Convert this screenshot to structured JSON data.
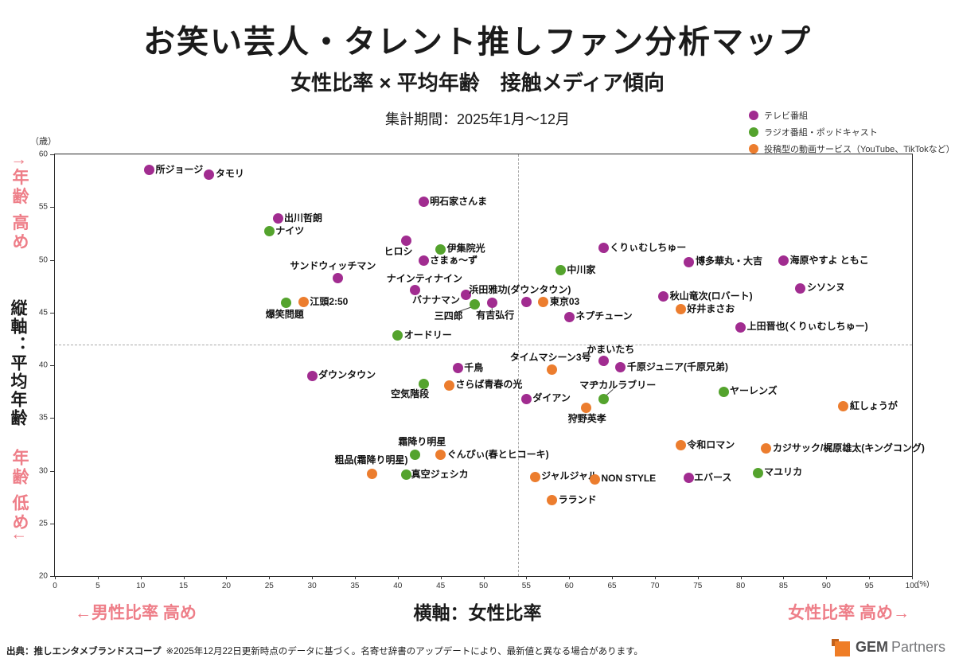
{
  "colors": {
    "annotation_pink": "#EE7E88",
    "logo_orange": "#EF7D26",
    "logo_orange_dark": "#C2611B"
  },
  "header": {
    "title": "お笑い芸人・タレント推しファン分析マップ",
    "subtitle": "女性比率 × 平均年齢　接触メディア傾向",
    "period": "集計期間：2025年1月～12月"
  },
  "legend": {
    "items": [
      {
        "key": "tv",
        "label": "テレビ番組",
        "color": "#A12C90"
      },
      {
        "key": "radio",
        "label": "ラジオ番組・ポッドキャスト",
        "color": "#54A32D"
      },
      {
        "key": "video",
        "label": "投稿型の動画サービス（YouTube、TikTokなど）",
        "color": "#EC7D2E"
      }
    ]
  },
  "annotations": {
    "y_high": "↑年齢 高め",
    "y_axis_name": "縦軸：平均年齢",
    "y_low": "年齢 低め↓",
    "x_low": "←男性比率 高め",
    "x_axis_name": "横軸：女性比率",
    "x_high": "女性比率 高め→",
    "y_unit": "（歳）",
    "x_unit": "(%)"
  },
  "footer": {
    "source_bold": "出典：推しエンタメブランドスコープ",
    "source_note": "※2025年12月22日更新時点のデータに基づく。名寄せ辞書のアップデートにより、最新値と異なる場合があります。",
    "logo_gem": "GEM",
    "logo_partners": "Partners"
  },
  "chart_data": {
    "type": "scatter",
    "title": "お笑い芸人・タレント推しファン分析マップ",
    "xlabel": "横軸：女性比率",
    "ylabel": "縦軸：平均年齢",
    "xlim": [
      0,
      100
    ],
    "ylim": [
      20,
      60
    ],
    "x_ticks": [
      0,
      5,
      10,
      15,
      20,
      25,
      30,
      35,
      40,
      45,
      50,
      55,
      60,
      65,
      70,
      75,
      80,
      85,
      90,
      95,
      100
    ],
    "y_ticks": [
      20,
      25,
      30,
      35,
      40,
      45,
      50,
      55,
      60
    ],
    "grid": false,
    "legend_position": "top-right",
    "quadrant_lines": {
      "x": 54,
      "y": 42
    },
    "series_colors": {
      "tv": "#A12C90",
      "radio": "#54A32D",
      "video": "#EC7D2E"
    },
    "points": [
      {
        "name": "所ジョージ",
        "x": 11,
        "y": 58.5,
        "cat": "tv",
        "pos": "right",
        "shift": [
          0,
          0
        ]
      },
      {
        "name": "タモリ",
        "x": 18,
        "y": 58.1,
        "cat": "tv",
        "pos": "right",
        "shift": [
          0,
          0
        ]
      },
      {
        "name": "出川哲朗",
        "x": 26,
        "y": 53.9,
        "cat": "tv",
        "pos": "right",
        "shift": [
          0,
          0
        ]
      },
      {
        "name": "ナイツ",
        "x": 25,
        "y": 52.7,
        "cat": "radio",
        "pos": "right",
        "shift": [
          0,
          0
        ]
      },
      {
        "name": "明石家さんま",
        "x": 43,
        "y": 55.5,
        "cat": "tv",
        "pos": "right",
        "shift": [
          0,
          0
        ]
      },
      {
        "name": "ヒロシ",
        "x": 41,
        "y": 51.8,
        "cat": "tv",
        "pos": "below",
        "shift": [
          -10,
          -1
        ]
      },
      {
        "name": "伊集院光",
        "x": 45,
        "y": 51.0,
        "cat": "radio",
        "pos": "right",
        "shift": [
          0,
          0
        ]
      },
      {
        "name": "さまぁ～ず",
        "x": 43,
        "y": 49.9,
        "cat": "tv",
        "pos": "right",
        "shift": [
          0,
          0
        ]
      },
      {
        "name": "サンドウィッチマン",
        "x": 33,
        "y": 48.3,
        "cat": "tv",
        "pos": "above",
        "shift": [
          -6,
          0
        ]
      },
      {
        "name": "ナインティナイン",
        "x": 42,
        "y": 47.1,
        "cat": "tv",
        "pos": "above",
        "shift": [
          12,
          0
        ]
      },
      {
        "name": "爆笑問題",
        "x": 27,
        "y": 45.9,
        "cat": "radio",
        "pos": "below",
        "shift": [
          -2,
          0
        ]
      },
      {
        "name": "江頭2:50",
        "x": 29,
        "y": 46.0,
        "cat": "video",
        "pos": "right",
        "shift": [
          0,
          0
        ]
      },
      {
        "name": "バナナマン",
        "x": 48,
        "y": 46.7,
        "cat": "tv",
        "pos": "left",
        "shift": [
          0,
          8
        ]
      },
      {
        "name": "三四郎",
        "x": 49,
        "y": 45.8,
        "cat": "radio",
        "pos": "below",
        "shift": [
          -33,
          1
        ],
        "leader": [
          -22,
          10,
          -5,
          4
        ]
      },
      {
        "name": "有吉弘行",
        "x": 51,
        "y": 45.9,
        "cat": "tv",
        "pos": "below",
        "shift": [
          4,
          1
        ],
        "leader": [
          0,
          12,
          0,
          6
        ]
      },
      {
        "name": "浜田雅功(ダウンタウン)",
        "x": 55,
        "y": 46.0,
        "cat": "tv",
        "pos": "above",
        "shift": [
          -8,
          -1
        ]
      },
      {
        "name": "東京03",
        "x": 57,
        "y": 46.0,
        "cat": "video",
        "pos": "right",
        "shift": [
          0,
          0
        ]
      },
      {
        "name": "中川家",
        "x": 59,
        "y": 49.0,
        "cat": "radio",
        "pos": "right",
        "shift": [
          0,
          0
        ]
      },
      {
        "name": "くりぃむしちゅー",
        "x": 64,
        "y": 51.1,
        "cat": "tv",
        "pos": "right",
        "shift": [
          0,
          0
        ]
      },
      {
        "name": "博多華丸・大吉",
        "x": 74,
        "y": 49.8,
        "cat": "tv",
        "pos": "right",
        "shift": [
          0,
          0
        ]
      },
      {
        "name": "海原やすよ ともこ",
        "x": 85,
        "y": 49.9,
        "cat": "tv",
        "pos": "right",
        "shift": [
          0,
          0
        ]
      },
      {
        "name": "シソンヌ",
        "x": 87,
        "y": 47.3,
        "cat": "tv",
        "pos": "right",
        "shift": [
          0,
          0
        ]
      },
      {
        "name": "秋山竜次(ロバート)",
        "x": 71,
        "y": 46.5,
        "cat": "tv",
        "pos": "right",
        "shift": [
          0,
          0
        ]
      },
      {
        "name": "好井まさお",
        "x": 73,
        "y": 45.3,
        "cat": "video",
        "pos": "right",
        "shift": [
          0,
          0
        ]
      },
      {
        "name": "ネプチューン",
        "x": 60,
        "y": 44.6,
        "cat": "tv",
        "pos": "right",
        "shift": [
          0,
          0
        ]
      },
      {
        "name": "上田晋也(くりぃむしちゅー)",
        "x": 80,
        "y": 43.6,
        "cat": "tv",
        "pos": "right",
        "shift": [
          0,
          0
        ]
      },
      {
        "name": "オードリー",
        "x": 40,
        "y": 42.8,
        "cat": "radio",
        "pos": "right",
        "shift": [
          0,
          0
        ]
      },
      {
        "name": "ダウンタウン",
        "x": 30,
        "y": 39.0,
        "cat": "tv",
        "pos": "right",
        "shift": [
          0,
          0
        ]
      },
      {
        "name": "千鳥",
        "x": 47,
        "y": 39.7,
        "cat": "tv",
        "pos": "right",
        "shift": [
          0,
          0
        ]
      },
      {
        "name": "空気階段",
        "x": 43,
        "y": 38.2,
        "cat": "radio",
        "pos": "below",
        "shift": [
          -17,
          -2
        ]
      },
      {
        "name": "さらば青春の光",
        "x": 46,
        "y": 38.1,
        "cat": "video",
        "pos": "right",
        "shift": [
          0,
          0
        ]
      },
      {
        "name": "タイムマシーン3号",
        "x": 58,
        "y": 39.6,
        "cat": "video",
        "pos": "above",
        "shift": [
          -2,
          0
        ]
      },
      {
        "name": "かまいたち",
        "x": 64,
        "y": 40.4,
        "cat": "tv",
        "pos": "above",
        "shift": [
          9,
          0
        ]
      },
      {
        "name": "千原ジュニア(千原兄弟)",
        "x": 66,
        "y": 39.8,
        "cat": "tv",
        "pos": "right",
        "shift": [
          0,
          0
        ]
      },
      {
        "name": "マヂカルラブリー",
        "x": 64,
        "y": 36.8,
        "cat": "radio",
        "pos": "above",
        "shift": [
          18,
          -2
        ],
        "leader": [
          12,
          -12,
          4,
          -5
        ]
      },
      {
        "name": "ヤーレンズ",
        "x": 78,
        "y": 37.5,
        "cat": "radio",
        "pos": "right",
        "shift": [
          0,
          0
        ]
      },
      {
        "name": "ダイアン",
        "x": 55,
        "y": 36.8,
        "cat": "tv",
        "pos": "right",
        "shift": [
          0,
          0
        ]
      },
      {
        "name": "狩野英孝",
        "x": 62,
        "y": 36.0,
        "cat": "video",
        "pos": "below",
        "shift": [
          1,
          0
        ]
      },
      {
        "name": "紅しょうが",
        "x": 92,
        "y": 36.1,
        "cat": "video",
        "pos": "right",
        "shift": [
          0,
          0
        ]
      },
      {
        "name": "霜降り明星",
        "x": 42,
        "y": 31.5,
        "cat": "radio",
        "pos": "above",
        "shift": [
          9,
          -2
        ]
      },
      {
        "name": "ぐんぴぃ(春とヒコーキ)",
        "x": 45,
        "y": 31.5,
        "cat": "video",
        "pos": "right",
        "shift": [
          0,
          0
        ]
      },
      {
        "name": "粗品(霜降り明星)",
        "x": 37,
        "y": 29.7,
        "cat": "video",
        "pos": "above",
        "shift": [
          -1,
          -2
        ]
      },
      {
        "name": "真空ジェシカ",
        "x": 41,
        "y": 29.6,
        "cat": "radio",
        "pos": "right",
        "shift": [
          -2,
          0
        ]
      },
      {
        "name": "ジャルジャル",
        "x": 56,
        "y": 29.4,
        "cat": "video",
        "pos": "right",
        "shift": [
          0,
          0
        ]
      },
      {
        "name": "NON STYLE",
        "x": 63,
        "y": 29.2,
        "cat": "video",
        "pos": "right",
        "shift": [
          0,
          0
        ]
      },
      {
        "name": "ラランド",
        "x": 58,
        "y": 27.2,
        "cat": "video",
        "pos": "right",
        "shift": [
          0,
          0
        ]
      },
      {
        "name": "令和ロマン",
        "x": 73,
        "y": 32.4,
        "cat": "video",
        "pos": "right",
        "shift": [
          0,
          0
        ]
      },
      {
        "name": "カジサック/梶原雄太(キングコング)",
        "x": 83,
        "y": 32.1,
        "cat": "video",
        "pos": "right",
        "shift": [
          0,
          0
        ]
      },
      {
        "name": "エバース",
        "x": 74,
        "y": 29.3,
        "cat": "tv",
        "pos": "right",
        "shift": [
          -2,
          0
        ]
      },
      {
        "name": "マユリカ",
        "x": 82,
        "y": 29.8,
        "cat": "radio",
        "pos": "right",
        "shift": [
          0,
          0
        ]
      }
    ]
  }
}
